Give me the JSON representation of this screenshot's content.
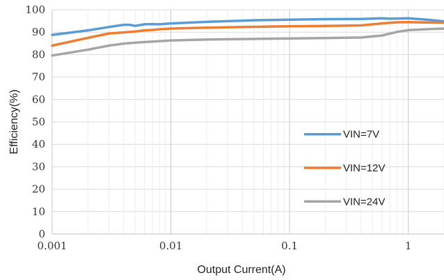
{
  "chart_data": {
    "type": "line",
    "title": "",
    "xlabel": "Output Current(A)",
    "ylabel": "Efficiency(%)",
    "x_scale": "log",
    "xlim": [
      0.001,
      2
    ],
    "ylim": [
      0,
      100
    ],
    "x_ticks": [
      0.001,
      0.01,
      0.1,
      1
    ],
    "x_tick_labels": [
      "0.001",
      "0.01",
      "0.1",
      "1"
    ],
    "y_ticks": [
      0,
      10,
      20,
      30,
      40,
      50,
      60,
      70,
      80,
      90,
      100
    ],
    "grid": true,
    "legend_position": "right",
    "series": [
      {
        "name": "VIN=7V",
        "color": "#5b9bd5",
        "x": [
          0.001,
          0.002,
          0.003,
          0.004,
          0.0045,
          0.005,
          0.006,
          0.007,
          0.008,
          0.01,
          0.02,
          0.05,
          0.1,
          0.2,
          0.4,
          0.6,
          0.7,
          1,
          1.5,
          2
        ],
        "y": [
          88.8,
          90.8,
          92.3,
          93.3,
          93.3,
          92.8,
          93.5,
          93.6,
          93.5,
          93.9,
          94.6,
          95.3,
          95.6,
          95.8,
          95.9,
          96.2,
          96.0,
          96.2,
          95.5,
          94.8
        ]
      },
      {
        "name": "VIN=12V",
        "color": "#ed7d31",
        "x": [
          0.001,
          0.002,
          0.003,
          0.004,
          0.005,
          0.006,
          0.007,
          0.008,
          0.01,
          0.02,
          0.05,
          0.1,
          0.2,
          0.4,
          0.6,
          0.8,
          1,
          1.5,
          2
        ],
        "y": [
          84.0,
          87.5,
          89.4,
          89.9,
          90.3,
          90.8,
          91.0,
          91.3,
          91.6,
          92.0,
          92.4,
          92.6,
          92.8,
          93.0,
          93.9,
          94.4,
          94.5,
          94.3,
          94.2
        ]
      },
      {
        "name": "VIN=24V",
        "color": "#a5a5a5",
        "x": [
          0.001,
          0.002,
          0.003,
          0.004,
          0.005,
          0.006,
          0.007,
          0.008,
          0.01,
          0.02,
          0.05,
          0.1,
          0.2,
          0.4,
          0.6,
          0.8,
          1,
          1.5,
          2
        ],
        "y": [
          79.6,
          82.2,
          84.0,
          84.9,
          85.3,
          85.6,
          85.8,
          86.0,
          86.3,
          86.7,
          87.0,
          87.2,
          87.4,
          87.6,
          88.5,
          90.1,
          90.9,
          91.4,
          91.6
        ]
      }
    ]
  }
}
